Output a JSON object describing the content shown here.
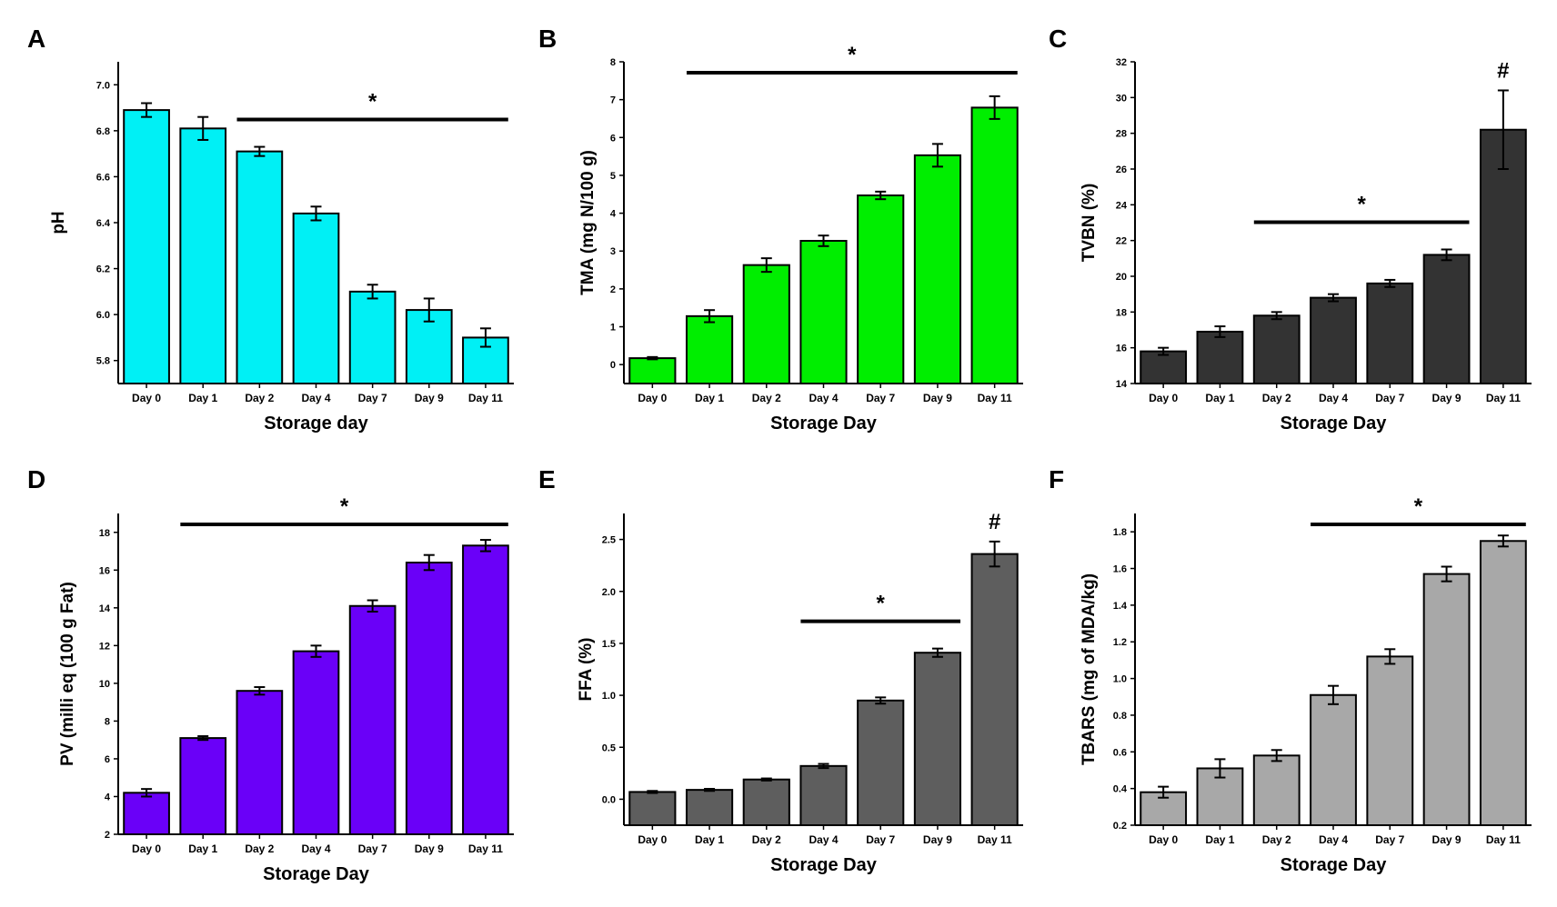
{
  "chart_data": [
    {
      "panel": "A",
      "type": "bar",
      "bar_color": "#00f0f5",
      "categories": [
        "Day 0",
        "Day 1",
        "Day 2",
        "Day 4",
        "Day 7",
        "Day 9",
        "Day 11"
      ],
      "values": [
        6.89,
        6.81,
        6.71,
        6.44,
        6.1,
        6.02,
        5.9
      ],
      "errors": [
        0.03,
        0.05,
        0.02,
        0.03,
        0.03,
        0.05,
        0.04
      ],
      "ylim": [
        5.7,
        7.1
      ],
      "yticks": [
        "5.8",
        "6.0",
        "6.2",
        "6.4",
        "6.6",
        "6.8",
        "7.0"
      ],
      "xlabel": "Storage day",
      "ylabel": "pH",
      "significance": [
        {
          "label": "*",
          "from": 2,
          "to": 6
        }
      ]
    },
    {
      "panel": "B",
      "type": "bar",
      "bar_color": "#00ee00",
      "categories": [
        "Day 0",
        "Day 1",
        "Day 2",
        "Day 4",
        "Day 7",
        "Day 9",
        "Day 11"
      ],
      "values": [
        0.17,
        1.28,
        2.63,
        3.27,
        4.47,
        5.53,
        6.79
      ],
      "errors": [
        0.03,
        0.16,
        0.18,
        0.14,
        0.1,
        0.3,
        0.3
      ],
      "ylim": [
        -0.5,
        8
      ],
      "yticks": [
        "0",
        "1",
        "2",
        "3",
        "4",
        "5",
        "6",
        "7",
        "8"
      ],
      "xlabel": "Storage Day",
      "ylabel": "TMA (mg N/100 g)",
      "significance": [
        {
          "label": "*",
          "from": 1,
          "to": 6
        }
      ]
    },
    {
      "panel": "C",
      "type": "bar",
      "bar_color": "#333333",
      "categories": [
        "Day 0",
        "Day 1",
        "Day 2",
        "Day 4",
        "Day 7",
        "Day 9",
        "Day 11"
      ],
      "values": [
        15.8,
        16.9,
        17.8,
        18.8,
        19.6,
        21.2,
        28.2
      ],
      "errors": [
        0.2,
        0.3,
        0.2,
        0.2,
        0.2,
        0.3,
        2.2
      ],
      "ylim": [
        14,
        32
      ],
      "yticks": [
        "14",
        "16",
        "18",
        "20",
        "22",
        "24",
        "26",
        "28",
        "30",
        "32"
      ],
      "xlabel": "Storage Day",
      "ylabel": "TVBN (%)",
      "significance": [
        {
          "label": "*",
          "from": 2,
          "to": 5
        },
        {
          "label": "#",
          "from": 6,
          "to": 6
        }
      ]
    },
    {
      "panel": "D",
      "type": "bar",
      "bar_color": "#6a00f8",
      "categories": [
        "Day 0",
        "Day 1",
        "Day 2",
        "Day 4",
        "Day 7",
        "Day 9",
        "Day 11"
      ],
      "values": [
        4.2,
        7.1,
        9.6,
        11.7,
        14.1,
        16.4,
        17.3
      ],
      "errors": [
        0.2,
        0.1,
        0.2,
        0.3,
        0.3,
        0.4,
        0.3
      ],
      "ylim": [
        2,
        19
      ],
      "yticks": [
        "2",
        "4",
        "6",
        "8",
        "10",
        "12",
        "14",
        "16",
        "18"
      ],
      "xlabel": "Storage Day",
      "ylabel": "PV (milli eq (100 g Fat)",
      "significance": [
        {
          "label": "*",
          "from": 1,
          "to": 6
        }
      ]
    },
    {
      "panel": "E",
      "type": "bar",
      "bar_color": "#5e5e5e",
      "categories": [
        "Day 0",
        "Day 1",
        "Day 2",
        "Day 4",
        "Day 7",
        "Day 9",
        "Day 11"
      ],
      "values": [
        0.07,
        0.09,
        0.19,
        0.32,
        0.95,
        1.41,
        2.36
      ],
      "errors": [
        0.01,
        0.01,
        0.01,
        0.02,
        0.03,
        0.04,
        0.12
      ],
      "ylim": [
        -0.25,
        2.75
      ],
      "yticks": [
        "0.0",
        "0.5",
        "1.0",
        "1.5",
        "2.0",
        "2.5"
      ],
      "xlabel": "Storage Day",
      "ylabel": "FFA (%)",
      "significance": [
        {
          "label": "*",
          "from": 3,
          "to": 5
        },
        {
          "label": "#",
          "from": 6,
          "to": 6
        }
      ]
    },
    {
      "panel": "F",
      "type": "bar",
      "bar_color": "#a8a8a8",
      "categories": [
        "Day 0",
        "Day 1",
        "Day 2",
        "Day 4",
        "Day 7",
        "Day 9",
        "Day 11"
      ],
      "values": [
        0.38,
        0.51,
        0.58,
        0.91,
        1.12,
        1.57,
        1.75
      ],
      "errors": [
        0.03,
        0.05,
        0.03,
        0.05,
        0.04,
        0.04,
        0.03
      ],
      "ylim": [
        0.2,
        1.9
      ],
      "yticks": [
        "0.2",
        "0.4",
        "0.6",
        "0.8",
        "1.0",
        "1.2",
        "1.4",
        "1.6",
        "1.8"
      ],
      "xlabel": "Storage Day",
      "ylabel": "TBARS (mg of MDA/kg)",
      "significance": [
        {
          "label": "*",
          "from": 3,
          "to": 6
        }
      ]
    }
  ]
}
